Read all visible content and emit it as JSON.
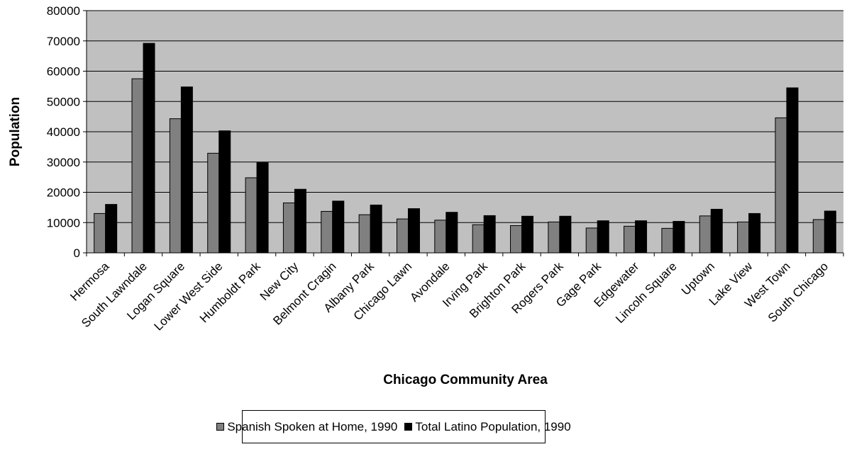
{
  "chart_data": {
    "type": "bar",
    "xlabel": "Chicago Community Area",
    "ylabel": "Population",
    "ylim": [
      0,
      80000
    ],
    "yticks": [
      0,
      10000,
      20000,
      30000,
      40000,
      50000,
      60000,
      70000,
      80000
    ],
    "grid": true,
    "legend_position": "bottom",
    "plot_background": "#c0c0c0",
    "categories": [
      "Hermosa",
      "South Lawndale",
      "Logan Square",
      "Lower West Side",
      "Humboldt Park",
      "New City",
      "Belmont Cragin",
      "Albany Park",
      "Chicago Lawn",
      "Avondale",
      "Irving Park",
      "Brighton Park",
      "Rogers Park",
      "Gage Park",
      "Edgewater",
      "Lincoln Square",
      "Uptown",
      "Lake View",
      "West Town",
      "South Chicago"
    ],
    "series": [
      {
        "name": "Spanish Spoken at Home, 1990",
        "color": "#808080",
        "values": [
          13000,
          57500,
          44300,
          32900,
          24800,
          16500,
          13700,
          12600,
          11200,
          10800,
          9300,
          9000,
          10200,
          8200,
          8800,
          8100,
          12200,
          10200,
          44600,
          11000
        ]
      },
      {
        "name": "Total Latino Population, 1990",
        "color": "#000000",
        "values": [
          16000,
          69200,
          54800,
          40300,
          29800,
          21000,
          17100,
          15800,
          14600,
          13400,
          12300,
          12100,
          12100,
          10600,
          10600,
          10400,
          14400,
          13000,
          54500,
          13800
        ]
      }
    ]
  }
}
